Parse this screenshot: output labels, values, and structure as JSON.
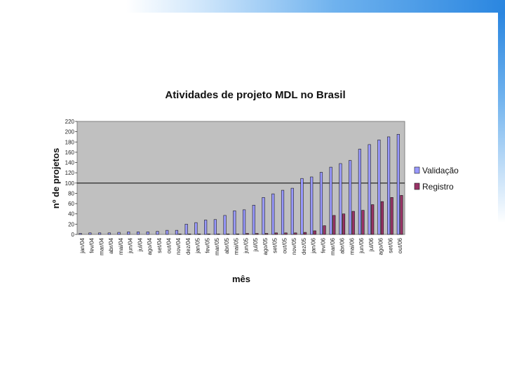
{
  "chart_data": {
    "type": "bar",
    "title": "Atividades de projeto MDL no Brasil",
    "xlabel": "mês",
    "ylabel": "nº de projetos",
    "ylim": [
      0,
      220
    ],
    "yticks": [
      0,
      20,
      40,
      60,
      80,
      100,
      120,
      140,
      160,
      180,
      200,
      220
    ],
    "grid": false,
    "reference_line": 100,
    "legend_position": "right",
    "plot_background": "#c0c0c0",
    "categories": [
      "jan/04",
      "fev/04",
      "mar/04",
      "abr/04",
      "mai/04",
      "jun/04",
      "jul/04",
      "ago/04",
      "set/04",
      "out/04",
      "nov/04",
      "dez/04",
      "jan/05",
      "fev/05",
      "mar/05",
      "abr/05",
      "mai/05",
      "jun/05",
      "jul/05",
      "ago/05",
      "set/05",
      "out/05",
      "nov/05",
      "dez/05",
      "jan/06",
      "fev/06",
      "mar/06",
      "abr/06",
      "mai/06",
      "jun/06",
      "jul/06",
      "ago/06",
      "set/06",
      "out/06"
    ],
    "series": [
      {
        "name": "Validação",
        "color": "#9999ff",
        "values": [
          2,
          3,
          3,
          3,
          4,
          5,
          5,
          5,
          6,
          8,
          8,
          20,
          23,
          28,
          29,
          37,
          46,
          48,
          57,
          72,
          79,
          86,
          90,
          109,
          112,
          121,
          131,
          138,
          144,
          166,
          175,
          184,
          190,
          195
        ]
      },
      {
        "name": "Registro",
        "color": "#993366",
        "values": [
          0,
          0,
          0,
          0,
          0,
          0,
          0,
          0,
          0,
          0,
          1,
          1,
          1,
          1,
          1,
          1,
          1,
          2,
          2,
          2,
          3,
          3,
          3,
          4,
          7,
          17,
          37,
          40,
          45,
          47,
          58,
          64,
          72,
          76
        ]
      }
    ]
  }
}
